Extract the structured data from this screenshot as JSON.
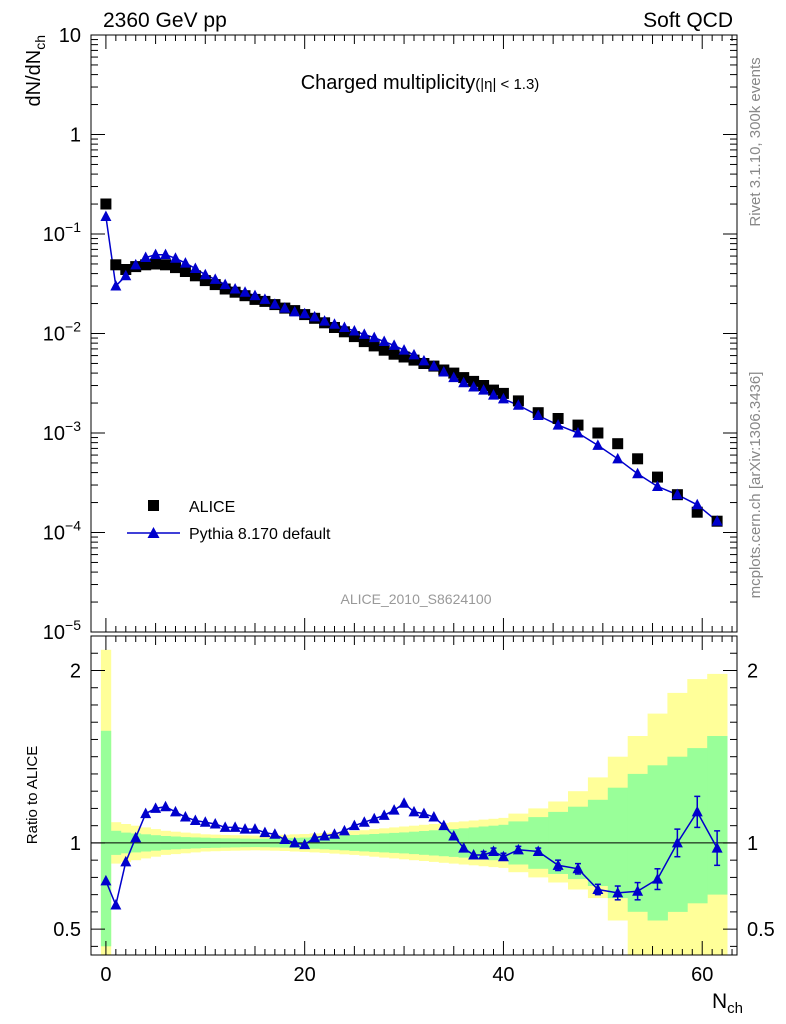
{
  "header": {
    "energy_label": "2360 GeV pp",
    "process_label": "Soft QCD"
  },
  "side": {
    "rivet_label": "Rivet 3.1.10,  300k events",
    "source_label": "mcplots.cern.ch [arXiv:1306.3436]"
  },
  "chart_data": [
    {
      "type": "scatter",
      "title": "Charged multiplicity",
      "title_suffix": "(|η| < 1.3)",
      "ylabel": "dN/dN",
      "ylabel_sub": "ch",
      "yscale": "log",
      "ylim": [
        1e-05,
        10
      ],
      "xlim": [
        -1.5,
        63.5
      ],
      "analysis_label": "ALICE_2010_S8624100",
      "legend_position": "bottom-left",
      "y_ticks": [
        {
          "value": 10,
          "label": "10"
        },
        {
          "value": 1,
          "label": "1"
        },
        {
          "value": 0.1,
          "base": "10",
          "exp": "−1"
        },
        {
          "value": 0.01,
          "base": "10",
          "exp": "−2"
        },
        {
          "value": 0.001,
          "base": "10",
          "exp": "−3"
        },
        {
          "value": 0.0001,
          "base": "10",
          "exp": "−4"
        },
        {
          "value": 1e-05,
          "base": "10",
          "exp": "−5"
        }
      ],
      "series": [
        {
          "name": "ALICE",
          "color": "#000000",
          "marker": "square",
          "x": [
            0,
            1,
            2,
            3,
            4,
            5,
            6,
            7,
            8,
            9,
            10,
            11,
            12,
            13,
            14,
            15,
            16,
            17,
            18,
            19,
            20,
            21,
            22,
            23,
            24,
            25,
            26,
            27,
            28,
            29,
            30,
            31,
            32,
            33,
            34,
            35,
            36,
            37,
            38,
            39,
            40,
            41.5,
            43.5,
            45.5,
            47.5,
            49.5,
            51.5,
            53.5,
            55.5,
            57.5,
            59.5,
            61.5
          ],
          "y": [
            0.2,
            0.049,
            0.044,
            0.047,
            0.049,
            0.05,
            0.049,
            0.046,
            0.042,
            0.038,
            0.034,
            0.031,
            0.028,
            0.026,
            0.024,
            0.022,
            0.021,
            0.0195,
            0.018,
            0.017,
            0.0155,
            0.0142,
            0.0128,
            0.0115,
            0.0104,
            0.0093,
            0.0083,
            0.0075,
            0.0068,
            0.0062,
            0.0058,
            0.0054,
            0.005,
            0.0047,
            0.0043,
            0.004,
            0.0036,
            0.0033,
            0.003,
            0.0027,
            0.0025,
            0.0021,
            0.0016,
            0.0014,
            0.0012,
            0.001,
            0.00078,
            0.00055,
            0.00036,
            0.00024,
            0.00016,
            0.00013
          ]
        },
        {
          "name": "Pythia 8.170 default",
          "color": "#0000cc",
          "marker": "triangle",
          "x": [
            0,
            1,
            2,
            3,
            4,
            5,
            6,
            7,
            8,
            9,
            10,
            11,
            12,
            13,
            14,
            15,
            16,
            17,
            18,
            19,
            20,
            21,
            22,
            23,
            24,
            25,
            26,
            27,
            28,
            29,
            30,
            31,
            32,
            33,
            34,
            35,
            36,
            37,
            38,
            39,
            40,
            41.5,
            43.5,
            45.5,
            47.5,
            49.5,
            51.5,
            53.5,
            55.5,
            57.5,
            59.5,
            61.5
          ],
          "y": [
            0.15,
            0.03,
            0.038,
            0.049,
            0.058,
            0.062,
            0.062,
            0.057,
            0.051,
            0.045,
            0.039,
            0.035,
            0.031,
            0.028,
            0.026,
            0.024,
            0.022,
            0.0197,
            0.018,
            0.0165,
            0.0158,
            0.0147,
            0.0133,
            0.0124,
            0.0115,
            0.0106,
            0.0098,
            0.0091,
            0.0083,
            0.0076,
            0.0068,
            0.0061,
            0.0053,
            0.0047,
            0.0041,
            0.0036,
            0.0032,
            0.0029,
            0.0027,
            0.0024,
            0.0022,
            0.0019,
            0.0015,
            0.0012,
            0.001,
            0.00075,
            0.00055,
            0.00039,
            0.00029,
            0.00024,
            0.00019,
            0.00013
          ]
        }
      ]
    },
    {
      "type": "line",
      "ylabel": "Ratio to ALICE",
      "xlabel": "N",
      "xlabel_sub": "ch",
      "xlim": [
        -1.5,
        63.5
      ],
      "ylim": [
        0.35,
        2.2
      ],
      "x_ticks": [
        0,
        20,
        40,
        60
      ],
      "y_ticks": [
        {
          "value": 0.5,
          "label": "0.5"
        },
        {
          "value": 1,
          "label": "1"
        },
        {
          "value": 2,
          "label": "2"
        }
      ],
      "bands": {
        "edges": [
          -0.5,
          0.5,
          1.5,
          2.5,
          3.5,
          4.5,
          5.5,
          6.5,
          7.5,
          8.5,
          9.5,
          10.5,
          11.5,
          12.5,
          13.5,
          14.5,
          15.5,
          16.5,
          17.5,
          18.5,
          19.5,
          20.5,
          21.5,
          22.5,
          23.5,
          24.5,
          25.5,
          26.5,
          27.5,
          28.5,
          29.5,
          30.5,
          31.5,
          32.5,
          33.5,
          34.5,
          35.5,
          36.5,
          37.5,
          38.5,
          39.5,
          40.5,
          42.5,
          44.5,
          46.5,
          48.5,
          50.5,
          52.5,
          54.5,
          56.5,
          58.5,
          60.5,
          62.5
        ],
        "outer": {
          "color": "#ffff99",
          "lo": [
            0.35,
            0.88,
            0.89,
            0.9,
            0.91,
            0.92,
            0.93,
            0.935,
            0.94,
            0.945,
            0.95,
            0.952,
            0.954,
            0.955,
            0.956,
            0.957,
            0.956,
            0.955,
            0.953,
            0.95,
            0.948,
            0.945,
            0.942,
            0.938,
            0.934,
            0.93,
            0.926,
            0.92,
            0.915,
            0.91,
            0.905,
            0.9,
            0.895,
            0.89,
            0.885,
            0.88,
            0.875,
            0.87,
            0.865,
            0.86,
            0.855,
            0.83,
            0.8,
            0.77,
            0.73,
            0.68,
            0.55,
            0.35,
            0.35,
            0.35,
            0.35,
            0.35
          ],
          "hi": [
            2.12,
            1.12,
            1.11,
            1.1,
            1.09,
            1.08,
            1.07,
            1.065,
            1.06,
            1.055,
            1.05,
            1.048,
            1.046,
            1.045,
            1.044,
            1.043,
            1.044,
            1.045,
            1.047,
            1.05,
            1.052,
            1.055,
            1.058,
            1.062,
            1.066,
            1.07,
            1.074,
            1.08,
            1.085,
            1.09,
            1.095,
            1.1,
            1.105,
            1.11,
            1.115,
            1.12,
            1.125,
            1.13,
            1.135,
            1.14,
            1.145,
            1.17,
            1.2,
            1.24,
            1.3,
            1.38,
            1.5,
            1.62,
            1.75,
            1.87,
            1.95,
            1.98
          ]
        },
        "inner": {
          "color": "#99ff99",
          "lo": [
            0.4,
            0.93,
            0.94,
            0.945,
            0.95,
            0.955,
            0.96,
            0.963,
            0.966,
            0.968,
            0.97,
            0.972,
            0.973,
            0.974,
            0.975,
            0.976,
            0.975,
            0.974,
            0.973,
            0.971,
            0.969,
            0.966,
            0.963,
            0.96,
            0.957,
            0.954,
            0.951,
            0.948,
            0.945,
            0.942,
            0.939,
            0.935,
            0.931,
            0.927,
            0.923,
            0.919,
            0.915,
            0.91,
            0.905,
            0.9,
            0.895,
            0.875,
            0.85,
            0.82,
            0.79,
            0.75,
            0.68,
            0.6,
            0.55,
            0.6,
            0.65,
            0.7
          ],
          "hi": [
            1.65,
            1.07,
            1.06,
            1.055,
            1.05,
            1.045,
            1.04,
            1.037,
            1.034,
            1.032,
            1.03,
            1.028,
            1.027,
            1.026,
            1.025,
            1.024,
            1.025,
            1.026,
            1.027,
            1.029,
            1.031,
            1.034,
            1.037,
            1.04,
            1.043,
            1.046,
            1.049,
            1.052,
            1.055,
            1.058,
            1.061,
            1.065,
            1.069,
            1.073,
            1.077,
            1.081,
            1.085,
            1.09,
            1.095,
            1.1,
            1.105,
            1.125,
            1.15,
            1.18,
            1.21,
            1.25,
            1.32,
            1.4,
            1.45,
            1.5,
            1.55,
            1.62
          ]
        }
      },
      "series": [
        {
          "name": "Pythia 8.170 default",
          "color": "#0000cc",
          "x": [
            0,
            1,
            2,
            3,
            4,
            5,
            6,
            7,
            8,
            9,
            10,
            11,
            12,
            13,
            14,
            15,
            16,
            17,
            18,
            19,
            20,
            21,
            22,
            23,
            24,
            25,
            26,
            27,
            28,
            29,
            30,
            31,
            32,
            33,
            34,
            35,
            36,
            37,
            38,
            39,
            40,
            41.5,
            43.5,
            45.5,
            47.5,
            49.5,
            51.5,
            53.5,
            55.5,
            57.5,
            59.5,
            61.5
          ],
          "y": [
            0.78,
            0.64,
            0.89,
            1.03,
            1.17,
            1.2,
            1.21,
            1.18,
            1.15,
            1.13,
            1.12,
            1.11,
            1.09,
            1.09,
            1.08,
            1.08,
            1.06,
            1.05,
            1.02,
            1.0,
            0.99,
            1.03,
            1.04,
            1.05,
            1.07,
            1.1,
            1.12,
            1.14,
            1.16,
            1.19,
            1.23,
            1.18,
            1.17,
            1.15,
            1.1,
            1.04,
            0.97,
            0.93,
            0.93,
            0.95,
            0.92,
            0.96,
            0.95,
            0.87,
            0.85,
            0.73,
            0.71,
            0.72,
            0.79,
            1.0,
            1.18,
            0.97
          ],
          "err": [
            0,
            0,
            0,
            0,
            0,
            0,
            0,
            0,
            0,
            0,
            0,
            0,
            0,
            0,
            0,
            0,
            0,
            0,
            0,
            0,
            0,
            0,
            0,
            0,
            0,
            0,
            0,
            0,
            0,
            0,
            0,
            0,
            0,
            0,
            0,
            0,
            0,
            0,
            0.02,
            0.02,
            0.02,
            0.02,
            0.02,
            0.03,
            0.03,
            0.03,
            0.04,
            0.05,
            0.06,
            0.08,
            0.09,
            0.1
          ]
        }
      ]
    }
  ]
}
